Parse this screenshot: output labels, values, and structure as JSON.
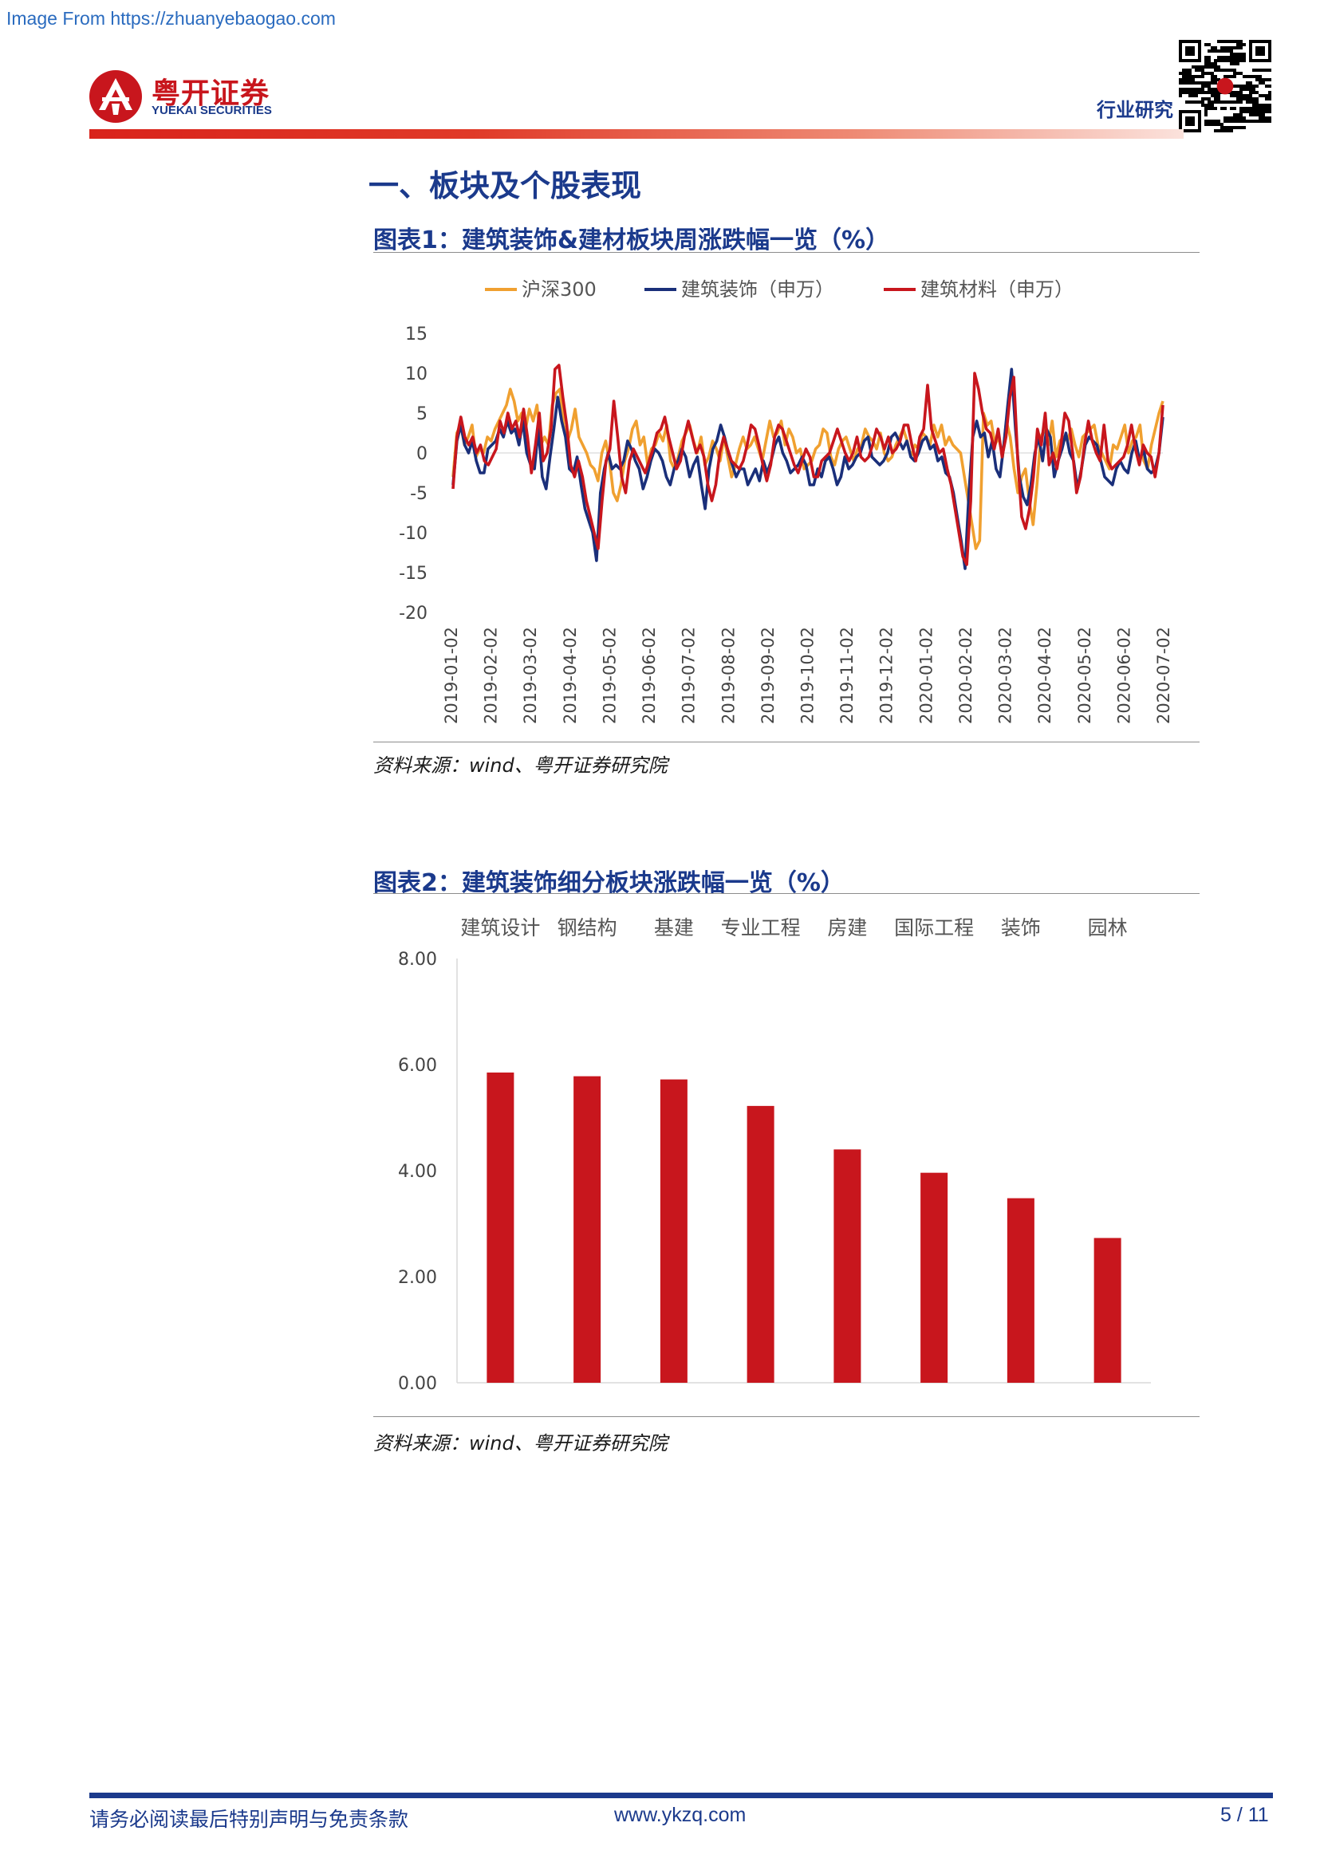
{
  "watermark": "Image From https://zhuanyebaogao.com",
  "header": {
    "logo_cn": "粤开证券",
    "logo_en": "YUEKAI SECURITIES",
    "label": "行业研究"
  },
  "section_title": "一、板块及个股表现",
  "figure1": {
    "title": "图表1：建筑装饰&建材板块周涨跌幅一览（%）",
    "source": "资料来源：wind、粤开证券研究院",
    "chart_data": {
      "type": "line",
      "legend_position": "top",
      "ylim": [
        -20,
        15
      ],
      "yticks": [
        "15",
        "10",
        "5",
        "0",
        "-5",
        "-10",
        "-15",
        "-20"
      ],
      "x_labels": [
        "2019-01-02",
        "2019-02-02",
        "2019-03-02",
        "2019-04-02",
        "2019-05-02",
        "2019-06-02",
        "2019-07-02",
        "2019-08-02",
        "2019-09-02",
        "2019-10-02",
        "2019-11-02",
        "2019-12-02",
        "2020-01-02",
        "2020-02-02",
        "2020-03-02",
        "2020-04-02",
        "2020-05-02",
        "2020-06-02",
        "2020-07-02"
      ],
      "series": [
        {
          "name": "沪深300",
          "color": "#f0a030",
          "values": [
            -3,
            2.5,
            3.5,
            1,
            2,
            3.5,
            -0.5,
            0.5,
            0,
            2,
            1.5,
            3,
            4,
            5,
            6,
            8,
            6.5,
            4,
            5,
            3,
            5.5,
            4,
            6,
            1,
            2,
            1,
            6,
            7.5,
            8,
            3.5,
            1.5,
            3,
            5.5,
            2,
            1,
            0,
            -1.5,
            -2,
            -3.5,
            0,
            1.5,
            -1,
            -5,
            -6,
            -4,
            -1,
            0.5,
            3,
            4,
            1,
            2,
            -1.5,
            0.5,
            1,
            2.5,
            1.5,
            3.5,
            -1,
            -2,
            -0.5,
            1.5,
            2.5,
            3.5,
            1.5,
            0,
            2,
            -1.5,
            -0.5,
            1.5,
            0.5,
            -1,
            2,
            -0.5,
            -3,
            -1.5,
            0.5,
            2,
            0.5,
            1,
            2,
            0.5,
            -1,
            1.5,
            4,
            2,
            2.5,
            4,
            1,
            3,
            2,
            0,
            0.5,
            -2,
            -1.5,
            -1,
            0.5,
            1,
            3,
            2.5,
            -0.5,
            -1.5,
            0.5,
            1.5,
            2,
            0.5,
            -1,
            0.5,
            1,
            3,
            2,
            1.5,
            0.5,
            2.5,
            0,
            -1,
            -0.5,
            1,
            2,
            3,
            1.5,
            -0.5,
            1,
            0.5,
            2.5,
            2,
            1,
            3.5,
            2,
            3.5,
            1,
            2,
            1,
            0.5,
            0,
            -3,
            -6,
            -9,
            -12,
            -11,
            5,
            3.5,
            4,
            1,
            2,
            -0.5,
            4,
            2,
            -2,
            -5,
            -3,
            -2,
            -6,
            -9,
            -4,
            2,
            3,
            1,
            4,
            -0.5,
            1.5,
            2,
            1.5,
            3,
            1,
            -0.5,
            2,
            2.5,
            3,
            3.5,
            1,
            0,
            -1,
            -2,
            1,
            0.5,
            2,
            3.5,
            0,
            1.5,
            2,
            3.5,
            -1,
            -2,
            1,
            3,
            5,
            6.5
          ]
        },
        {
          "name": "建筑装饰（申万）",
          "color": "#1a2f7a",
          "values": [
            -4,
            1.5,
            3.5,
            1,
            0,
            1.5,
            -1,
            -2.5,
            -2.5,
            0.5,
            1,
            1.5,
            3,
            2,
            4,
            2.5,
            3,
            1,
            4,
            0,
            -1.5,
            -2,
            3,
            -3,
            -4.5,
            -0.5,
            3,
            7,
            4,
            2,
            -2,
            -2.5,
            -0.5,
            -4,
            -7,
            -8.5,
            -10,
            -13.5,
            -5,
            -2,
            0,
            -2,
            -1.5,
            -2,
            -1,
            1.5,
            0.5,
            -1,
            -2,
            -4.5,
            -3,
            -1,
            0.5,
            0,
            -1,
            -3,
            -4,
            -2,
            -1,
            0.5,
            -0.5,
            -3,
            -1.5,
            -0.5,
            -4,
            -7,
            -2,
            0.5,
            1.5,
            3.5,
            2,
            0,
            -1.5,
            -3,
            -2,
            -2,
            -4,
            -3,
            -2,
            -3.5,
            -1,
            -2.5,
            -1,
            1,
            2,
            0,
            -1,
            -2.5,
            -2,
            -1.5,
            -0.5,
            -1.5,
            -4,
            -4,
            -2,
            -3,
            -1,
            -0.5,
            -2,
            -4,
            -3,
            -0.5,
            -2,
            -1.5,
            -0.5,
            0,
            1.5,
            2,
            -0.5,
            -1,
            -1.5,
            -1,
            0,
            2,
            2.5,
            1.5,
            0.5,
            1.5,
            -0.5,
            -1,
            0,
            1.5,
            2,
            0.5,
            1,
            -1,
            -0.5,
            -2.5,
            -3,
            -5,
            -8,
            -11,
            -14.5,
            -5,
            2,
            4,
            2,
            2.5,
            -0.5,
            1.5,
            -2,
            -3,
            1,
            6,
            10.5,
            3,
            -3,
            -5.5,
            -6.5,
            -4,
            0,
            2,
            -1,
            3,
            2,
            -3,
            -1,
            0.5,
            2.5,
            0,
            -1,
            -4.5,
            -2,
            1,
            2,
            1.5,
            1,
            -1,
            -3,
            -3.5,
            -4,
            -2,
            -1,
            -2,
            -2.5,
            0,
            1.5,
            -1,
            0.5,
            -2,
            -2.5,
            -2,
            0,
            4.5
          ]
        },
        {
          "name": "建筑材料（申万）",
          "color": "#c8161d",
          "values": [
            -4.5,
            2,
            4.5,
            2,
            1,
            2,
            0,
            1,
            -1,
            -1.5,
            -0.5,
            0.5,
            4,
            2.5,
            5,
            3,
            4,
            2,
            5.5,
            2,
            -2.5,
            1,
            5,
            -1,
            0,
            3,
            10.5,
            11,
            7,
            3.5,
            -1.5,
            -3,
            -1,
            -3,
            -6,
            -8,
            -10,
            -12,
            -6,
            -1,
            0.5,
            6.5,
            2,
            -3,
            -5,
            -1,
            0.5,
            -0.5,
            -1.5,
            -2.5,
            -1,
            0.5,
            2.5,
            3,
            4.5,
            2,
            0,
            -2,
            -1,
            2,
            4,
            2,
            0,
            1,
            -0.5,
            -4,
            -6,
            -4,
            0,
            2,
            0.5,
            -1,
            -1.5,
            -2,
            -1,
            1,
            3.5,
            3,
            1,
            -1.5,
            -3.5,
            -1.5,
            2,
            3.5,
            3,
            1.5,
            0,
            -1.5,
            -2.5,
            -1,
            0.5,
            -0.5,
            -3,
            -3,
            -1,
            -0.5,
            0,
            1.5,
            3,
            1.5,
            0,
            -1,
            0,
            2,
            -0.5,
            -1,
            -0.5,
            1,
            3,
            2,
            0.5,
            2,
            0,
            0.5,
            1.5,
            3.5,
            3.5,
            1,
            -1,
            2,
            3,
            8.5,
            3,
            1.5,
            0,
            0.5,
            -2,
            -4,
            -7,
            -10,
            -13,
            -14,
            -6,
            10,
            8,
            5,
            3,
            2.5,
            0.5,
            3,
            -0.5,
            2,
            7,
            9.5,
            -1,
            -8,
            -9.5,
            -7,
            -3,
            3,
            1,
            5,
            -1.5,
            0,
            -2,
            1,
            5,
            4,
            0,
            -5,
            -3,
            1,
            4,
            1.5,
            0,
            -1,
            3.5,
            -1,
            -2,
            -1.5,
            -1,
            -0.5,
            1,
            3.5,
            0.5,
            -1.5,
            1,
            0,
            -0.5,
            -3,
            0,
            6
          ]
        }
      ]
    }
  },
  "figure2": {
    "title": "图表2：建筑装饰细分板块涨跌幅一览（%）",
    "source": "资料来源：wind、粤开证券研究院",
    "chart_data": {
      "type": "bar",
      "color": "#c8161d",
      "categories": [
        "建筑设计",
        "钢结构",
        "基建",
        "专业工程",
        "房建",
        "国际工程",
        "装饰",
        "园林"
      ],
      "values": [
        5.85,
        5.78,
        5.72,
        5.22,
        4.4,
        3.96,
        3.48,
        2.73
      ],
      "ylim": [
        0,
        8
      ],
      "yticks": [
        "8.00",
        "6.00",
        "4.00",
        "2.00",
        "0.00"
      ]
    }
  },
  "footer": {
    "disclaimer": "请务必阅读最后特别声明与免责条款",
    "website": "www.ykzq.com",
    "page": "5 / 11"
  }
}
